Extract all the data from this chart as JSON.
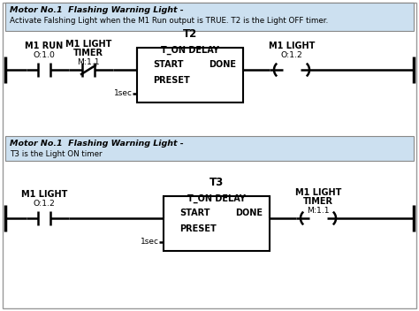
{
  "bg_color": "#ffffff",
  "comment_bg": "#cce0f0",
  "comment_border": "#888888",
  "line_color": "#000000",
  "lw": 1.8,
  "rung1_comment1": "Motor No.1  Flashing Warning Light -",
  "rung1_comment2": "Activate Falshing Light when the M1 Run output is TRUE. T2 is the Light OFF timer.",
  "rung2_comment1": "Motor No.1  Flashing Warning Light -",
  "rung2_comment2": "T3 is the Light ON timer",
  "outer_border": "#aaaaaa",
  "font_bold": "bold",
  "fs_comment": 6.8,
  "fs_label": 7.0,
  "fs_timer": 7.0
}
